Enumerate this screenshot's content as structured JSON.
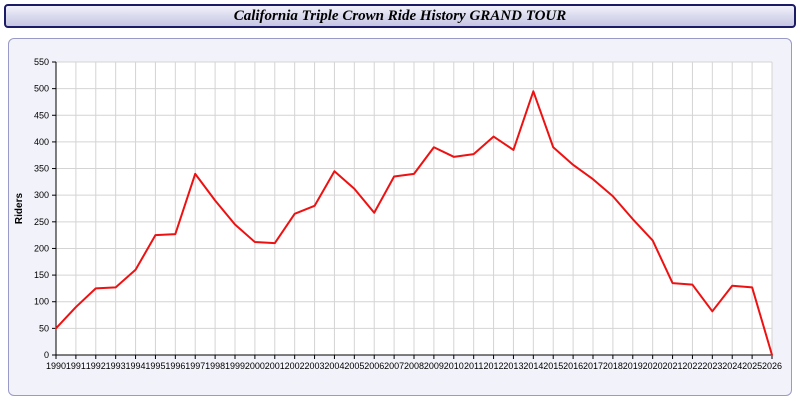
{
  "header": {
    "title": "California Triple Crown Ride History GRAND TOUR"
  },
  "colors": {
    "title_border": "#1b1b66",
    "panel_background": "#f2f2fa",
    "panel_border": "#9a9ac8",
    "line": "#ee1111",
    "grid": "#d4d4d4",
    "plot_background": "#ffffff",
    "axis": "#000000"
  },
  "chart_data": {
    "type": "line",
    "title": "California Triple Crown Ride History GRAND TOUR",
    "xlabel": "",
    "ylabel": "Riders",
    "ylim": [
      0,
      550
    ],
    "ytick_step": 50,
    "grid": true,
    "legend": "none",
    "line_color": "#ee1111",
    "grid_color": "#d4d4d4",
    "plot_bg": "#ffffff",
    "categories": [
      "1990",
      "1991",
      "1992",
      "1993",
      "1994",
      "1995",
      "1996",
      "1997",
      "1998",
      "1999",
      "2000",
      "2001",
      "2002",
      "2003",
      "2004",
      "2005",
      "2006",
      "2007",
      "2008",
      "2009",
      "2010",
      "2011",
      "2012",
      "2013",
      "2014",
      "2015",
      "2016",
      "2017",
      "2018",
      "2019",
      "2020",
      "2021",
      "2022",
      "2023",
      "2024",
      "2025",
      "2026"
    ],
    "series": [
      {
        "name": "Riders",
        "values": [
          50,
          90,
          125,
          127,
          160,
          225,
          227,
          340,
          290,
          245,
          212,
          210,
          265,
          280,
          345,
          312,
          267,
          335,
          340,
          390,
          372,
          377,
          410,
          385,
          495,
          390,
          357,
          330,
          298,
          255,
          215,
          135,
          132,
          82,
          130,
          127,
          0
        ]
      }
    ]
  }
}
